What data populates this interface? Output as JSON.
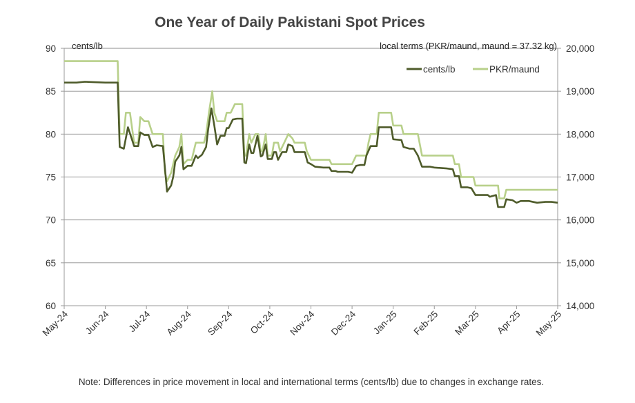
{
  "chart_data": {
    "type": "line",
    "title": "One Year of Daily Pakistani Spot Prices",
    "left_axis_label": "cents/lb",
    "right_axis_label": "local terms (PKR/maund, maund = 37.32 kg)",
    "left_ylim": [
      60,
      90
    ],
    "left_ticks": [
      "60",
      "65",
      "70",
      "75",
      "80",
      "85",
      "90"
    ],
    "right_ylim": [
      14000,
      20000
    ],
    "right_ticks": [
      "14,000",
      "15,000",
      "16,000",
      "17,000",
      "18,000",
      "19,000",
      "20,000"
    ],
    "x_tick_labels": [
      "May-24",
      "Jun-24",
      "Jul-24",
      "Aug-24",
      "Sep-24",
      "Oct-24",
      "Nov-24",
      "Dec-24",
      "Jan-25",
      "Feb-25",
      "Mar-25",
      "Apr-25",
      "May-25"
    ],
    "grid": "horizontal",
    "legend_position": "top-right",
    "series": [
      {
        "name": "cents/lb",
        "axis": "left",
        "color": "#4e5b2a",
        "points": [
          [
            0.0,
            86.0
          ],
          [
            0.3,
            86.0
          ],
          [
            0.5,
            86.1
          ],
          [
            1.0,
            86.0
          ],
          [
            1.3,
            86.0
          ],
          [
            1.35,
            78.5
          ],
          [
            1.45,
            78.3
          ],
          [
            1.55,
            80.8
          ],
          [
            1.7,
            78.6
          ],
          [
            1.8,
            78.6
          ],
          [
            1.85,
            80.2
          ],
          [
            1.95,
            79.9
          ],
          [
            2.05,
            79.9
          ],
          [
            2.15,
            78.5
          ],
          [
            2.25,
            78.7
          ],
          [
            2.4,
            78.6
          ],
          [
            2.45,
            76.0
          ],
          [
            2.5,
            73.3
          ],
          [
            2.6,
            74.0
          ],
          [
            2.65,
            75.0
          ],
          [
            2.7,
            76.8
          ],
          [
            2.8,
            77.5
          ],
          [
            2.85,
            78.5
          ],
          [
            2.9,
            75.9
          ],
          [
            3.0,
            76.3
          ],
          [
            3.1,
            76.3
          ],
          [
            3.2,
            77.5
          ],
          [
            3.25,
            77.2
          ],
          [
            3.35,
            77.6
          ],
          [
            3.45,
            78.5
          ],
          [
            3.5,
            80.5
          ],
          [
            3.58,
            83.0
          ],
          [
            3.65,
            81.0
          ],
          [
            3.72,
            78.8
          ],
          [
            3.8,
            79.8
          ],
          [
            3.9,
            79.8
          ],
          [
            3.95,
            80.7
          ],
          [
            4.0,
            80.7
          ],
          [
            4.1,
            81.7
          ],
          [
            4.2,
            81.8
          ],
          [
            4.33,
            81.8
          ],
          [
            4.38,
            76.7
          ],
          [
            4.42,
            76.6
          ],
          [
            4.5,
            78.8
          ],
          [
            4.55,
            77.8
          ],
          [
            4.6,
            77.8
          ],
          [
            4.65,
            78.8
          ],
          [
            4.7,
            79.8
          ],
          [
            4.78,
            77.4
          ],
          [
            4.82,
            77.5
          ],
          [
            4.9,
            78.8
          ],
          [
            4.95,
            77.1
          ],
          [
            5.05,
            77.1
          ],
          [
            5.1,
            77.9
          ],
          [
            5.15,
            77.9
          ],
          [
            5.2,
            77.0
          ],
          [
            5.3,
            77.9
          ],
          [
            5.4,
            77.9
          ],
          [
            5.45,
            78.8
          ],
          [
            5.55,
            78.6
          ],
          [
            5.6,
            77.9
          ],
          [
            5.85,
            77.9
          ],
          [
            5.92,
            76.7
          ],
          [
            6.0,
            76.5
          ],
          [
            6.1,
            76.2
          ],
          [
            6.3,
            76.1
          ],
          [
            6.45,
            76.1
          ],
          [
            6.5,
            75.7
          ],
          [
            6.6,
            75.7
          ],
          [
            6.65,
            75.6
          ],
          [
            6.9,
            75.6
          ],
          [
            7.0,
            75.5
          ],
          [
            7.1,
            76.3
          ],
          [
            7.2,
            76.4
          ],
          [
            7.3,
            76.4
          ],
          [
            7.35,
            77.5
          ],
          [
            7.45,
            78.6
          ],
          [
            7.6,
            78.6
          ],
          [
            7.65,
            80.8
          ],
          [
            7.95,
            80.8
          ],
          [
            8.0,
            79.4
          ],
          [
            8.2,
            79.3
          ],
          [
            8.25,
            78.5
          ],
          [
            8.4,
            78.3
          ],
          [
            8.5,
            78.3
          ],
          [
            8.6,
            77.5
          ],
          [
            8.7,
            76.2
          ],
          [
            8.9,
            76.2
          ],
          [
            9.0,
            76.1
          ],
          [
            9.3,
            76.0
          ],
          [
            9.45,
            75.9
          ],
          [
            9.5,
            75.1
          ],
          [
            9.6,
            75.1
          ],
          [
            9.65,
            73.8
          ],
          [
            9.8,
            73.8
          ],
          [
            9.9,
            73.7
          ],
          [
            10.0,
            72.9
          ],
          [
            10.3,
            72.9
          ],
          [
            10.35,
            72.7
          ],
          [
            10.5,
            72.9
          ],
          [
            10.55,
            71.5
          ],
          [
            10.7,
            71.5
          ],
          [
            10.75,
            72.4
          ],
          [
            10.9,
            72.3
          ],
          [
            11.0,
            72.0
          ],
          [
            11.1,
            72.2
          ],
          [
            11.3,
            72.2
          ],
          [
            11.5,
            72.0
          ],
          [
            11.7,
            72.1
          ],
          [
            11.85,
            72.1
          ],
          [
            12.0,
            72.0
          ]
        ]
      },
      {
        "name": "PKR/maund",
        "axis": "right",
        "color": "#b8d08a",
        "points": [
          [
            0.0,
            19700
          ],
          [
            1.3,
            19700
          ],
          [
            1.35,
            18000
          ],
          [
            1.45,
            18000
          ],
          [
            1.5,
            18500
          ],
          [
            1.6,
            18500
          ],
          [
            1.7,
            17800
          ],
          [
            1.8,
            17800
          ],
          [
            1.85,
            18400
          ],
          [
            1.95,
            18300
          ],
          [
            2.05,
            18300
          ],
          [
            2.15,
            18000
          ],
          [
            2.4,
            18000
          ],
          [
            2.45,
            17100
          ],
          [
            2.5,
            16900
          ],
          [
            2.6,
            17100
          ],
          [
            2.65,
            17300
          ],
          [
            2.7,
            17500
          ],
          [
            2.8,
            17700
          ],
          [
            2.85,
            18000
          ],
          [
            2.9,
            17300
          ],
          [
            3.0,
            17400
          ],
          [
            3.1,
            17400
          ],
          [
            3.2,
            17800
          ],
          [
            3.4,
            17800
          ],
          [
            3.45,
            18000
          ],
          [
            3.52,
            18500
          ],
          [
            3.6,
            19000
          ],
          [
            3.65,
            18500
          ],
          [
            3.72,
            18300
          ],
          [
            3.8,
            18300
          ],
          [
            3.9,
            18300
          ],
          [
            3.95,
            18500
          ],
          [
            4.05,
            18500
          ],
          [
            4.15,
            18700
          ],
          [
            4.33,
            18700
          ],
          [
            4.38,
            17500
          ],
          [
            4.42,
            17500
          ],
          [
            4.5,
            18000
          ],
          [
            4.55,
            17800
          ],
          [
            4.65,
            18000
          ],
          [
            4.72,
            18000
          ],
          [
            4.78,
            17600
          ],
          [
            4.82,
            17600
          ],
          [
            4.9,
            18000
          ],
          [
            4.95,
            17500
          ],
          [
            5.05,
            17500
          ],
          [
            5.1,
            17800
          ],
          [
            5.2,
            17800
          ],
          [
            5.25,
            17600
          ],
          [
            5.35,
            17800
          ],
          [
            5.45,
            18000
          ],
          [
            5.55,
            17900
          ],
          [
            5.6,
            17800
          ],
          [
            5.85,
            17800
          ],
          [
            5.9,
            17600
          ],
          [
            6.0,
            17400
          ],
          [
            6.45,
            17400
          ],
          [
            6.5,
            17300
          ],
          [
            7.0,
            17300
          ],
          [
            7.1,
            17500
          ],
          [
            7.35,
            17500
          ],
          [
            7.4,
            17800
          ],
          [
            7.45,
            18000
          ],
          [
            7.6,
            18000
          ],
          [
            7.65,
            18500
          ],
          [
            7.95,
            18500
          ],
          [
            8.0,
            18200
          ],
          [
            8.2,
            18200
          ],
          [
            8.25,
            18000
          ],
          [
            8.6,
            18000
          ],
          [
            8.7,
            17500
          ],
          [
            9.45,
            17500
          ],
          [
            9.5,
            17300
          ],
          [
            9.6,
            17300
          ],
          [
            9.65,
            17000
          ],
          [
            9.95,
            17000
          ],
          [
            10.0,
            16800
          ],
          [
            10.55,
            16800
          ],
          [
            10.58,
            16500
          ],
          [
            10.7,
            16500
          ],
          [
            10.75,
            16700
          ],
          [
            12.0,
            16700
          ]
        ]
      }
    ]
  },
  "footnote": "Note: Differences in price movement in local and international terms (cents/lb) due to changes in exchange rates."
}
